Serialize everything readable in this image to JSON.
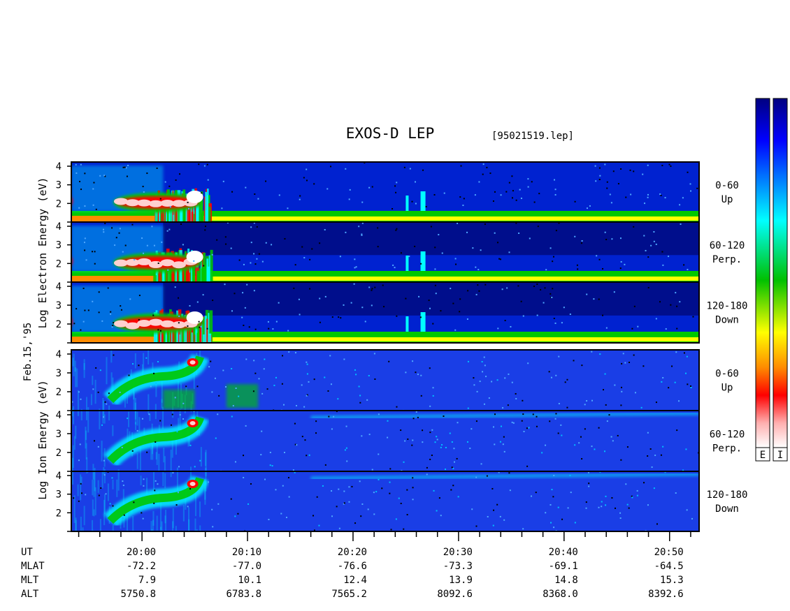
{
  "chart_data": {
    "type": "heatmap",
    "title": "EXOS-D LEP",
    "subtitle": "[95021519.lep]",
    "date_label": "Feb.15,'95",
    "y_tick_labels": [
      "4",
      "3",
      "2"
    ],
    "y_range": [
      1,
      4
    ],
    "electron_ylabel": [
      "Log",
      "Electron",
      "Energy (eV)"
    ],
    "ion_ylabel": [
      "Log",
      "Ion",
      "Energy (eV)"
    ],
    "x_tick_labels": [
      "20:00",
      "20:10",
      "20:20",
      "20:30",
      "20:40",
      "20:50"
    ],
    "x_ticks_min": [
      20,
      30,
      40,
      50,
      60,
      70
    ],
    "x_range_min": [
      13.3,
      72.8
    ],
    "x_minor_step_min": 2,
    "electron_panels": [
      {
        "name": "0-60",
        "direction": "Up"
      },
      {
        "name": "60-120",
        "direction": "Perp."
      },
      {
        "name": "120-180",
        "direction": "Down"
      }
    ],
    "ion_panels": [
      {
        "name": "0-60",
        "direction": "Up"
      },
      {
        "name": "60-120",
        "direction": "Perp."
      },
      {
        "name": "120-180",
        "direction": "Down"
      }
    ],
    "ephemeris_rows": [
      {
        "label": "UT",
        "values": [
          "20:00",
          "20:10",
          "20:20",
          "20:30",
          "20:40",
          "20:50"
        ]
      },
      {
        "label": "MLAT",
        "values": [
          "-72.2",
          "-77.0",
          "-76.6",
          "-73.3",
          "-69.1",
          "-64.5"
        ]
      },
      {
        "label": "MLT",
        "values": [
          "7.9",
          "10.1",
          "12.4",
          "13.9",
          "14.8",
          "15.3"
        ]
      },
      {
        "label": "ALT",
        "values": [
          "5750.8",
          "6783.8",
          "7565.2",
          "8092.6",
          "8368.0",
          "8392.6"
        ]
      }
    ],
    "colorbar_labels": [
      "E",
      "I"
    ],
    "colorscale": [
      "#ffffff",
      "#ff9a9a",
      "#ff0000",
      "#ff8c00",
      "#ffff00",
      "#00c800",
      "#00ffff",
      "#0050ff",
      "#000090"
    ]
  }
}
